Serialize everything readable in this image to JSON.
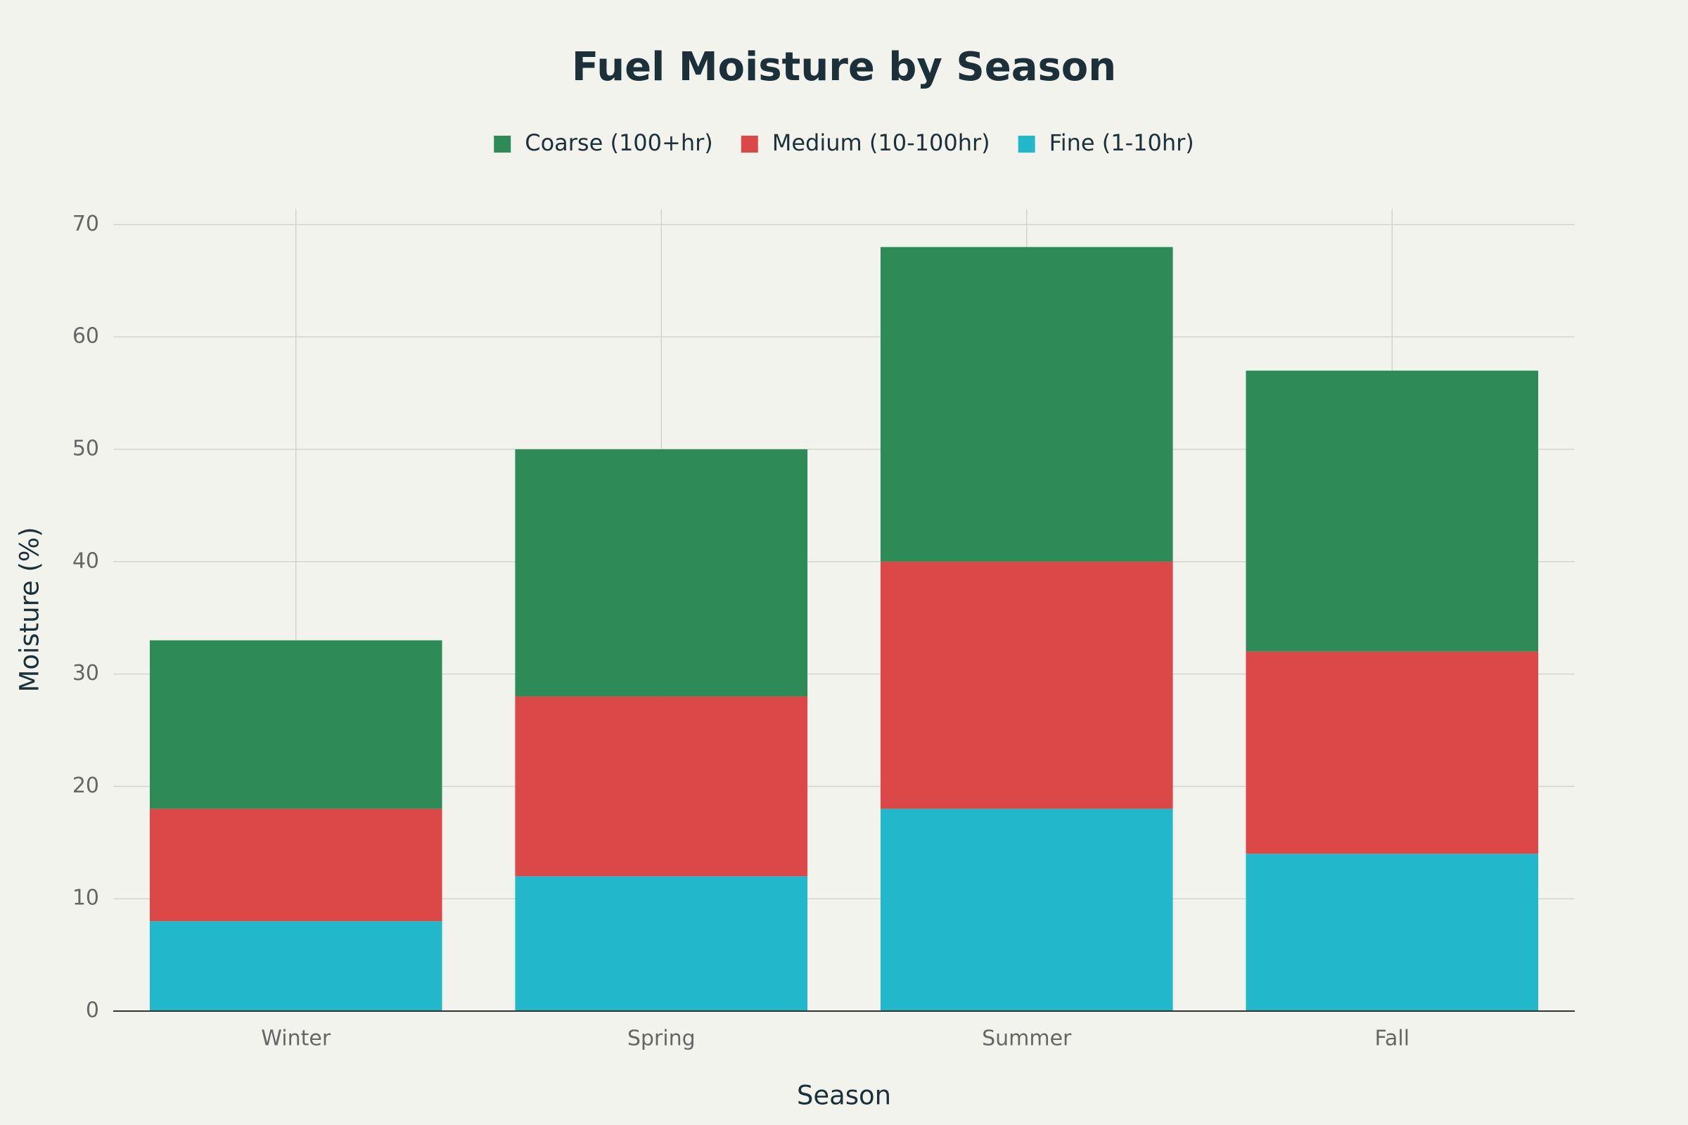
{
  "chart_data": {
    "type": "bar",
    "stacked": true,
    "title": "Fuel Moisture by Season",
    "x_label": "Season",
    "y_label": "Moisture (%)",
    "categories": [
      "Winter",
      "Spring",
      "Summer",
      "Fall"
    ],
    "series": [
      {
        "name": "Fine (1-10hr)",
        "color": "#21b8cc",
        "values": [
          8,
          12,
          18,
          14
        ]
      },
      {
        "name": "Medium (10-100hr)",
        "color": "#dc4748",
        "values": [
          10,
          16,
          22,
          18
        ]
      },
      {
        "name": "Coarse (100+hr)",
        "color": "#2e8b57",
        "values": [
          15,
          22,
          28,
          25
        ]
      }
    ],
    "ylim": [
      0,
      71.4
    ],
    "yticks": [
      0,
      10,
      20,
      30,
      40,
      50,
      60,
      70
    ],
    "grid": true
  }
}
